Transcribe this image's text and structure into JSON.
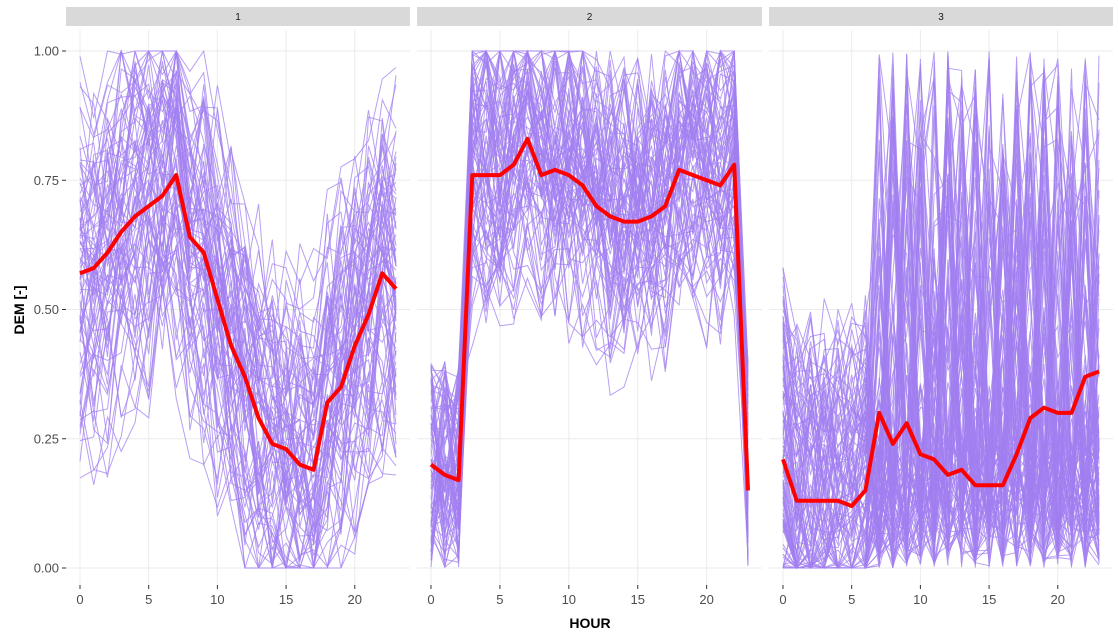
{
  "chart_data": {
    "type": "line",
    "facet_strip_color": "#d9d9d9",
    "panel_background": "#ffffff",
    "grid": true,
    "grid_color": "#ebebeb",
    "line_color": "#a27ff0",
    "mean_line_color": "#ff0000",
    "xlabel": "HOUR",
    "ylabel": "DEM [-]",
    "xlim": [
      0,
      23
    ],
    "ylim": [
      0,
      1
    ],
    "x_ticks": [
      0,
      5,
      10,
      15,
      20
    ],
    "x_tick_labels": [
      "0",
      "5",
      "10",
      "15",
      "20"
    ],
    "y_ticks": [
      0,
      0.25,
      0.5,
      0.75,
      1
    ],
    "y_tick_labels": [
      "0.00",
      "0.25",
      "0.50",
      "0.75",
      "1.00"
    ],
    "facets": [
      {
        "label": "1",
        "mean": {
          "x": [
            0,
            1,
            2,
            3,
            4,
            5,
            6,
            7,
            8,
            9,
            10,
            11,
            12,
            13,
            14,
            15,
            16,
            17,
            18,
            19,
            20,
            21,
            22,
            23
          ],
          "y": [
            0.57,
            0.58,
            0.61,
            0.65,
            0.68,
            0.7,
            0.72,
            0.76,
            0.64,
            0.61,
            0.52,
            0.43,
            0.37,
            0.29,
            0.24,
            0.23,
            0.2,
            0.19,
            0.32,
            0.35,
            0.43,
            0.49,
            0.57,
            0.54
          ]
        }
      },
      {
        "label": "2",
        "mean": {
          "x": [
            0,
            1,
            2,
            3,
            4,
            5,
            6,
            7,
            8,
            9,
            10,
            11,
            12,
            13,
            14,
            15,
            16,
            17,
            18,
            19,
            20,
            21,
            22,
            23
          ],
          "y": [
            0.2,
            0.18,
            0.17,
            0.76,
            0.76,
            0.76,
            0.78,
            0.83,
            0.76,
            0.77,
            0.76,
            0.74,
            0.7,
            0.68,
            0.67,
            0.67,
            0.68,
            0.7,
            0.77,
            0.76,
            0.75,
            0.74,
            0.78,
            0.15
          ]
        }
      },
      {
        "label": "3",
        "mean": {
          "x": [
            0,
            1,
            2,
            3,
            4,
            5,
            6,
            7,
            8,
            9,
            10,
            11,
            12,
            13,
            14,
            15,
            16,
            17,
            18,
            19,
            20,
            21,
            22,
            23
          ],
          "y": [
            0.21,
            0.13,
            0.13,
            0.13,
            0.13,
            0.12,
            0.15,
            0.3,
            0.24,
            0.28,
            0.22,
            0.21,
            0.18,
            0.19,
            0.16,
            0.16,
            0.16,
            0.22,
            0.29,
            0.31,
            0.3,
            0.3,
            0.37,
            0.38
          ]
        }
      }
    ]
  }
}
